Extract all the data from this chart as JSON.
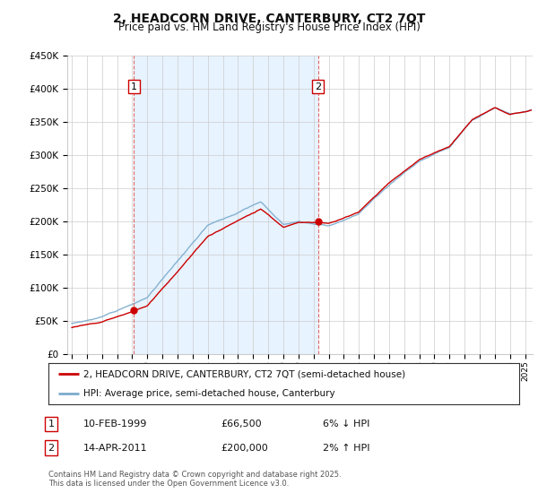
{
  "title": "2, HEADCORN DRIVE, CANTERBURY, CT2 7QT",
  "subtitle": "Price paid vs. HM Land Registry's House Price Index (HPI)",
  "legend_line1": "2, HEADCORN DRIVE, CANTERBURY, CT2 7QT (semi-detached house)",
  "legend_line2": "HPI: Average price, semi-detached house, Canterbury",
  "transaction1": {
    "label": "1",
    "date": "10-FEB-1999",
    "price": "£66,500",
    "hpi_note": "6% ↓ HPI",
    "year": 1999.11
  },
  "transaction2": {
    "label": "2",
    "date": "14-APR-2011",
    "price": "£200,000",
    "hpi_note": "2% ↑ HPI",
    "year": 2011.29
  },
  "footnote1": "Contains HM Land Registry data © Crown copyright and database right 2025.",
  "footnote2": "This data is licensed under the Open Government Licence v3.0.",
  "ylim": [
    0,
    450000
  ],
  "yticks": [
    0,
    50000,
    100000,
    150000,
    200000,
    250000,
    300000,
    350000,
    400000,
    450000
  ],
  "ytick_labels": [
    "£0",
    "£50K",
    "£100K",
    "£150K",
    "£200K",
    "£250K",
    "£300K",
    "£350K",
    "£400K",
    "£450K"
  ],
  "xlim_start": 1994.7,
  "xlim_end": 2025.5,
  "red_color": "#cc0000",
  "blue_color": "#7aabcc",
  "shade_color": "#ddeeff",
  "vline_color": "#dd4444",
  "grid_color": "#cccccc",
  "background_color": "#ffffff"
}
